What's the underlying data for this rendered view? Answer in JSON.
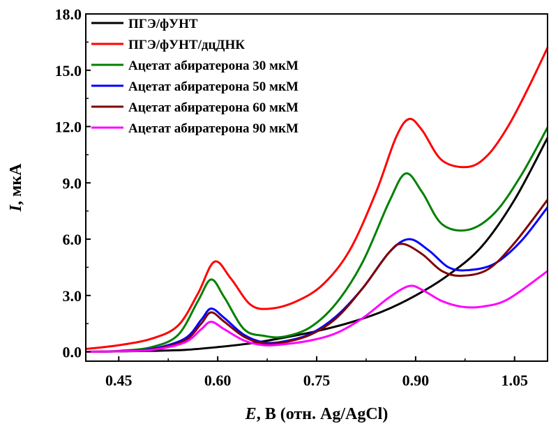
{
  "chart_data": {
    "type": "line",
    "xlabel": "E, В (отн. Ag/AgCl)",
    "xlabel_var": "E",
    "xlabel_rest": ", В (отн. Ag/AgCl)",
    "ylabel": "I, мкА",
    "ylabel_var": "I",
    "ylabel_rest": ", мкА",
    "xlim": [
      0.4,
      1.1
    ],
    "ylim": [
      -0.5,
      18.0
    ],
    "x_ticks": [
      0.45,
      0.6,
      0.75,
      0.9,
      1.05
    ],
    "x_tick_labels": [
      "0.45",
      "0.60",
      "0.75",
      "0.90",
      "1.05"
    ],
    "y_ticks": [
      0.0,
      3.0,
      6.0,
      9.0,
      12.0,
      15.0,
      18.0
    ],
    "y_tick_labels": [
      "0.0",
      "3.0",
      "6.0",
      "9.0",
      "12.0",
      "15.0",
      "18.0"
    ],
    "grid": false,
    "legend_position": "top-left",
    "series": [
      {
        "name": "ПГЭ/фУНТ",
        "color": "#000000",
        "x": [
          0.4,
          0.45,
          0.5,
          0.55,
          0.6,
          0.65,
          0.7,
          0.75,
          0.8,
          0.85,
          0.9,
          0.95,
          1.0,
          1.05,
          1.1
        ],
        "y": [
          0.0,
          0.02,
          0.05,
          0.1,
          0.25,
          0.45,
          0.75,
          1.1,
          1.55,
          2.15,
          3.0,
          4.1,
          5.6,
          8.1,
          11.4
        ]
      },
      {
        "name": "ПГЭ/фУНТ/дцДНК",
        "color": "#ff0000",
        "x": [
          0.4,
          0.45,
          0.5,
          0.54,
          0.57,
          0.595,
          0.62,
          0.65,
          0.68,
          0.72,
          0.76,
          0.8,
          0.84,
          0.87,
          0.89,
          0.91,
          0.94,
          0.98,
          1.01,
          1.04,
          1.07,
          1.1
        ],
        "y": [
          0.15,
          0.35,
          0.7,
          1.4,
          3.1,
          4.8,
          3.9,
          2.5,
          2.3,
          2.7,
          3.6,
          5.4,
          8.5,
          11.4,
          12.4,
          11.8,
          10.2,
          9.85,
          10.5,
          12.0,
          14.0,
          16.2
        ]
      },
      {
        "name": "Ацетат абиратерона 30 мкМ",
        "color": "#008000",
        "x": [
          0.4,
          0.45,
          0.5,
          0.54,
          0.57,
          0.59,
          0.61,
          0.64,
          0.67,
          0.7,
          0.74,
          0.78,
          0.82,
          0.86,
          0.885,
          0.91,
          0.94,
          0.98,
          1.02,
          1.06,
          1.1
        ],
        "y": [
          0.0,
          0.05,
          0.25,
          0.9,
          2.7,
          3.85,
          2.9,
          1.2,
          0.85,
          0.8,
          1.3,
          2.6,
          4.8,
          8.0,
          9.5,
          8.5,
          6.8,
          6.5,
          7.4,
          9.4,
          11.95
        ]
      },
      {
        "name": "Ацетат абиратерона 50 мкМ",
        "color": "#0000ff",
        "x": [
          0.4,
          0.45,
          0.5,
          0.55,
          0.575,
          0.59,
          0.61,
          0.64,
          0.67,
          0.7,
          0.74,
          0.78,
          0.82,
          0.86,
          0.89,
          0.92,
          0.95,
          0.98,
          1.02,
          1.06,
          1.1
        ],
        "y": [
          0.0,
          0.03,
          0.15,
          0.7,
          1.7,
          2.3,
          1.8,
          0.9,
          0.5,
          0.55,
          0.95,
          1.9,
          3.4,
          5.3,
          6.0,
          5.4,
          4.5,
          4.35,
          4.7,
          5.9,
          7.7
        ]
      },
      {
        "name": "Ацетат абиратерона 60 мкМ",
        "color": "#800000",
        "x": [
          0.4,
          0.45,
          0.5,
          0.55,
          0.575,
          0.59,
          0.61,
          0.64,
          0.67,
          0.7,
          0.74,
          0.78,
          0.82,
          0.86,
          0.88,
          0.91,
          0.94,
          0.97,
          1.01,
          1.05,
          1.1
        ],
        "y": [
          0.0,
          0.03,
          0.12,
          0.6,
          1.5,
          2.1,
          1.6,
          0.8,
          0.45,
          0.5,
          0.9,
          1.8,
          3.4,
          5.3,
          5.75,
          5.2,
          4.3,
          4.05,
          4.4,
          5.8,
          8.1
        ]
      },
      {
        "name": "Ацетат абиратерона 90 мкМ",
        "color": "#ff00ff",
        "x": [
          0.4,
          0.45,
          0.5,
          0.55,
          0.575,
          0.59,
          0.61,
          0.64,
          0.67,
          0.7,
          0.74,
          0.78,
          0.82,
          0.86,
          0.89,
          0.91,
          0.94,
          0.97,
          1.0,
          1.04,
          1.1
        ],
        "y": [
          0.0,
          0.03,
          0.1,
          0.5,
          1.2,
          1.6,
          1.2,
          0.6,
          0.35,
          0.4,
          0.6,
          1.0,
          1.8,
          2.9,
          3.5,
          3.3,
          2.7,
          2.4,
          2.4,
          2.8,
          4.3
        ]
      }
    ]
  }
}
